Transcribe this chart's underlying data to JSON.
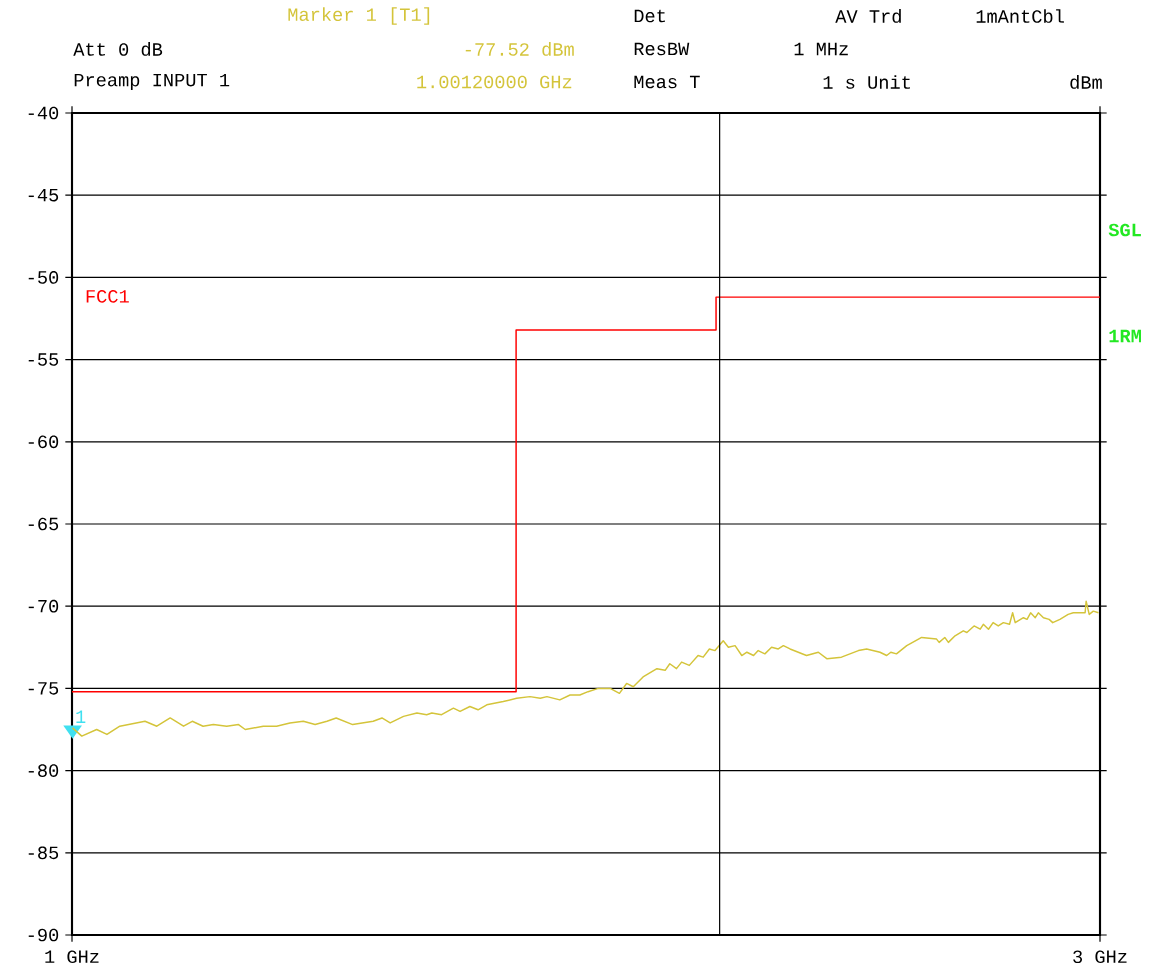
{
  "chart_data": {
    "type": "line",
    "annotations": [
      "Marker 1 [T1]",
      "Att 0 dB",
      "-77.52 dBm",
      "Preamp INPUT 1",
      "1.00120000 GHz",
      "Det",
      "AV Trd",
      "1mAntCbl",
      "ResBW",
      "1 MHz",
      "Meas T",
      "1 s Unit",
      "dBm",
      "SGL",
      "1RM",
      {
        "text": "1",
        "x": 1.0012,
        "y": -77.52
      }
    ],
    "xlim": [
      1,
      3
    ],
    "ylim": [
      -90,
      -40
    ],
    "xticks": [
      {
        "value": 1,
        "label": "1 GHz"
      },
      {
        "value": 3,
        "label": "3 GHz"
      }
    ],
    "yticks": [
      -90,
      -85,
      -80,
      -75,
      -70,
      -65,
      -60,
      -55,
      -50,
      -45,
      -40
    ],
    "grid": "y",
    "legend": false,
    "marker": "none",
    "line_style": "solid",
    "ref_lines": [
      {
        "axis": "x",
        "value": 2.26,
        "color": "#000000"
      }
    ],
    "series": [
      {
        "name": "FCC1",
        "type": "step",
        "color": "#ff0000",
        "x": [
          1,
          1.864,
          2.253,
          3
        ],
        "values": [
          -75.2,
          -53.2,
          -51.2,
          -51.2
        ]
      },
      {
        "type": "line",
        "color": "#d4c43a",
        "x": [
          1.001,
          1.019,
          1.048,
          1.068,
          1.093,
          1.142,
          1.165,
          1.191,
          1.217,
          1.234,
          1.255,
          1.275,
          1.301,
          1.324,
          1.337,
          1.372,
          1.398,
          1.424,
          1.45,
          1.473,
          1.496,
          1.514,
          1.546,
          1.586,
          1.603,
          1.619,
          1.645,
          1.671,
          1.69,
          1.7,
          1.719,
          1.742,
          1.755,
          1.774,
          1.79,
          1.807,
          1.839,
          1.865,
          1.891,
          1.911,
          1.924,
          1.949,
          1.969,
          1.988,
          2.004,
          2.024,
          2.047,
          2.065,
          2.079,
          2.092,
          2.111,
          2.138,
          2.154,
          2.163,
          2.176,
          2.186,
          2.201,
          2.218,
          2.228,
          2.24,
          2.251,
          2.267,
          2.277,
          2.29,
          2.303,
          2.313,
          2.326,
          2.335,
          2.348,
          2.361,
          2.374,
          2.384,
          2.397,
          2.429,
          2.452,
          2.469,
          2.497,
          2.53,
          2.546,
          2.572,
          2.585,
          2.593,
          2.604,
          2.624,
          2.653,
          2.682,
          2.687,
          2.698,
          2.705,
          2.718,
          2.734,
          2.741,
          2.755,
          2.767,
          2.773,
          2.783,
          2.792,
          2.802,
          2.812,
          2.824,
          2.83,
          2.835,
          2.851,
          2.858,
          2.865,
          2.874,
          2.88,
          2.89,
          2.901,
          2.908,
          2.922,
          2.938,
          2.948,
          2.971,
          2.973,
          2.979,
          2.987,
          2.997
        ],
        "values": [
          -77.4,
          -77.9,
          -77.5,
          -77.8,
          -77.3,
          -77.0,
          -77.3,
          -76.8,
          -77.3,
          -77.0,
          -77.3,
          -77.2,
          -77.3,
          -77.2,
          -77.5,
          -77.3,
          -77.3,
          -77.1,
          -77.0,
          -77.2,
          -77.0,
          -76.8,
          -77.2,
          -77.0,
          -76.8,
          -77.1,
          -76.7,
          -76.5,
          -76.6,
          -76.5,
          -76.6,
          -76.2,
          -76.4,
          -76.1,
          -76.3,
          -76.0,
          -75.8,
          -75.6,
          -75.5,
          -75.6,
          -75.5,
          -75.7,
          -75.4,
          -75.4,
          -75.2,
          -75.0,
          -75.0,
          -75.3,
          -74.7,
          -74.9,
          -74.3,
          -73.8,
          -73.9,
          -73.5,
          -73.8,
          -73.4,
          -73.6,
          -73.0,
          -73.1,
          -72.6,
          -72.7,
          -72.1,
          -72.5,
          -72.4,
          -73.0,
          -72.8,
          -73.0,
          -72.7,
          -72.9,
          -72.5,
          -72.6,
          -72.4,
          -72.6,
          -73.0,
          -72.8,
          -73.2,
          -73.1,
          -72.7,
          -72.6,
          -72.8,
          -73.0,
          -72.8,
          -72.9,
          -72.4,
          -71.9,
          -72.0,
          -72.2,
          -71.9,
          -72.2,
          -71.8,
          -71.5,
          -71.6,
          -71.2,
          -71.4,
          -71.1,
          -71.4,
          -71.0,
          -71.2,
          -71.0,
          -71.1,
          -70.4,
          -71.0,
          -70.7,
          -70.8,
          -70.4,
          -70.7,
          -70.4,
          -70.7,
          -70.8,
          -71.0,
          -70.8,
          -70.5,
          -70.4,
          -70.4,
          -69.7,
          -70.5,
          -70.3,
          -70.4
        ]
      }
    ]
  }
}
